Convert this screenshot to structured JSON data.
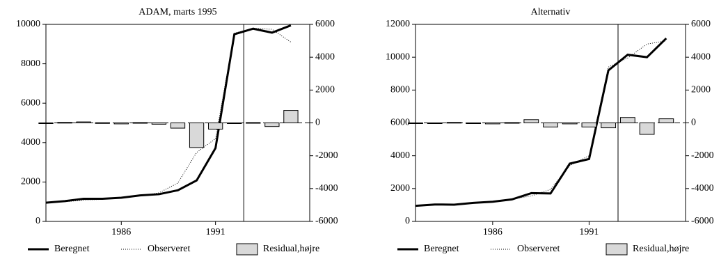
{
  "chart_data": [
    {
      "type": "line",
      "title": "ADAM, marts 1995",
      "x": [
        1982,
        1983,
        1984,
        1985,
        1986,
        1987,
        1988,
        1989,
        1990,
        1991,
        1992,
        1993,
        1994,
        1995
      ],
      "xlim": [
        1982,
        1996
      ],
      "xticks": [
        1986,
        1991
      ],
      "ylim": [
        0,
        10000
      ],
      "yticks": [
        0,
        2000,
        4000,
        6000,
        8000,
        10000
      ],
      "y2lim": [
        -6000,
        6000
      ],
      "y2ticks": [
        -6000,
        -4000,
        -2000,
        0,
        2000,
        4000,
        6000
      ],
      "vline": 1992.5,
      "series": [
        {
          "name": "Beregnet",
          "color": "#000000",
          "style": "solid",
          "values": [
            950,
            1030,
            1150,
            1150,
            1200,
            1320,
            1380,
            1580,
            2080,
            3720,
            9500,
            9780,
            9580,
            9950
          ]
        },
        {
          "name": "Observeret",
          "color": "#000000",
          "style": "dotted",
          "values": [
            950,
            1000,
            1080,
            1120,
            1220,
            1300,
            1450,
            1950,
            3500,
            4200,
            9550,
            9800,
            9750,
            9100
          ]
        },
        {
          "name": "Residual,højre",
          "color": "#d9d9d9",
          "style": "bar",
          "axis": "y2",
          "values": [
            0,
            30,
            60,
            10,
            -60,
            20,
            -80,
            -320,
            -1500,
            -380,
            0,
            20,
            -220,
            760
          ]
        }
      ]
    },
    {
      "type": "line",
      "title": "Alternativ",
      "x": [
        1982,
        1983,
        1984,
        1985,
        1986,
        1987,
        1988,
        1989,
        1990,
        1991,
        1992,
        1993,
        1994,
        1995
      ],
      "xlim": [
        1982,
        1996
      ],
      "xticks": [
        1986,
        1991
      ],
      "ylim": [
        0,
        12000
      ],
      "yticks": [
        0,
        2000,
        4000,
        6000,
        8000,
        10000,
        12000
      ],
      "y2lim": [
        -6000,
        6000
      ],
      "y2ticks": [
        -6000,
        -4000,
        -2000,
        0,
        2000,
        4000,
        6000
      ],
      "vline": 1992.5,
      "series": [
        {
          "name": "Beregnet",
          "color": "#000000",
          "style": "solid",
          "values": [
            950,
            1030,
            1020,
            1130,
            1200,
            1340,
            1720,
            1700,
            3520,
            3800,
            9200,
            10150,
            10000,
            11150
          ]
        },
        {
          "name": "Observeret",
          "color": "#000000",
          "style": "dotted",
          "values": [
            950,
            1000,
            1050,
            1100,
            1220,
            1350,
            1550,
            1950,
            3400,
            4000,
            9400,
            9950,
            10800,
            11000
          ]
        },
        {
          "name": "Residual,højre",
          "color": "#d9d9d9",
          "style": "bar",
          "axis": "y2",
          "values": [
            0,
            0,
            30,
            0,
            -60,
            20,
            200,
            -250,
            -60,
            -250,
            -300,
            330,
            -700,
            250
          ]
        }
      ]
    }
  ]
}
